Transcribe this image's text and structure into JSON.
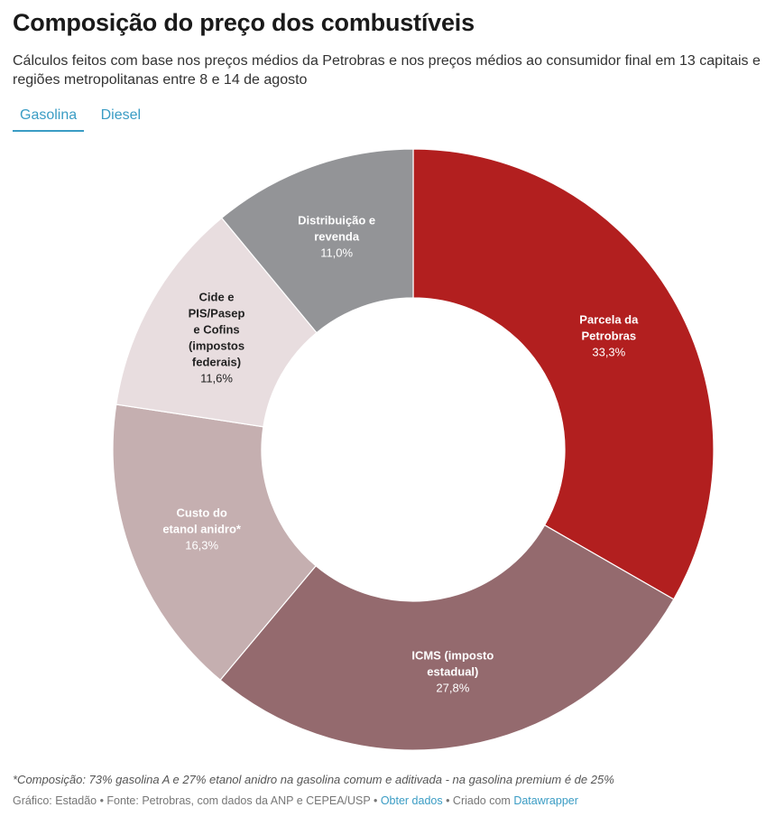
{
  "title": "Composição do preço dos combustíveis",
  "subtitle": "Cálculos feitos com base nos preços médios da Petrobras e nos preços médios ao consumidor final em 13 capitais e regiões metropolitanas entre 8 e 14 de agosto",
  "tabs": [
    {
      "label": "Gasolina",
      "active": true
    },
    {
      "label": "Diesel",
      "active": false
    }
  ],
  "chart_data": {
    "type": "pie",
    "variant": "donut",
    "slices": [
      {
        "label_lines": [
          "Parcela da",
          "Petrobras"
        ],
        "value": 33.3,
        "value_label": "33,3%",
        "color": "#b21f1f",
        "text_color": "#ffffff"
      },
      {
        "label_lines": [
          "ICMS (imposto",
          "estadual)"
        ],
        "value": 27.8,
        "value_label": "27,8%",
        "color": "#946a6e",
        "text_color": "#ffffff"
      },
      {
        "label_lines": [
          "Custo do",
          "etanol anidro*"
        ],
        "value": 16.3,
        "value_label": "16,3%",
        "color": "#c5afb0",
        "text_color": "#ffffff"
      },
      {
        "label_lines": [
          "Cide e",
          "PIS/Pasep",
          "e Cofins",
          "(impostos",
          "federais)"
        ],
        "value": 11.6,
        "value_label": "11,6%",
        "color": "#e8dddf",
        "text_color": "#222222"
      },
      {
        "label_lines": [
          "Distribuição e",
          "revenda"
        ],
        "value": 11.0,
        "value_label": "11,0%",
        "color": "#939497",
        "text_color": "#ffffff"
      }
    ]
  },
  "footnote": "*Composição: 73% gasolina A e 27% etanol anidro na gasolina comum e aditivada - na gasolina premium é de 25%",
  "credits": {
    "prefix": "Gráfico: Estadão • Fonte: Petrobras, com dados da ANP e CEPEA/USP • ",
    "get_data": "Obter dados",
    "middle": " • Criado com ",
    "tool": "Datawrapper"
  }
}
